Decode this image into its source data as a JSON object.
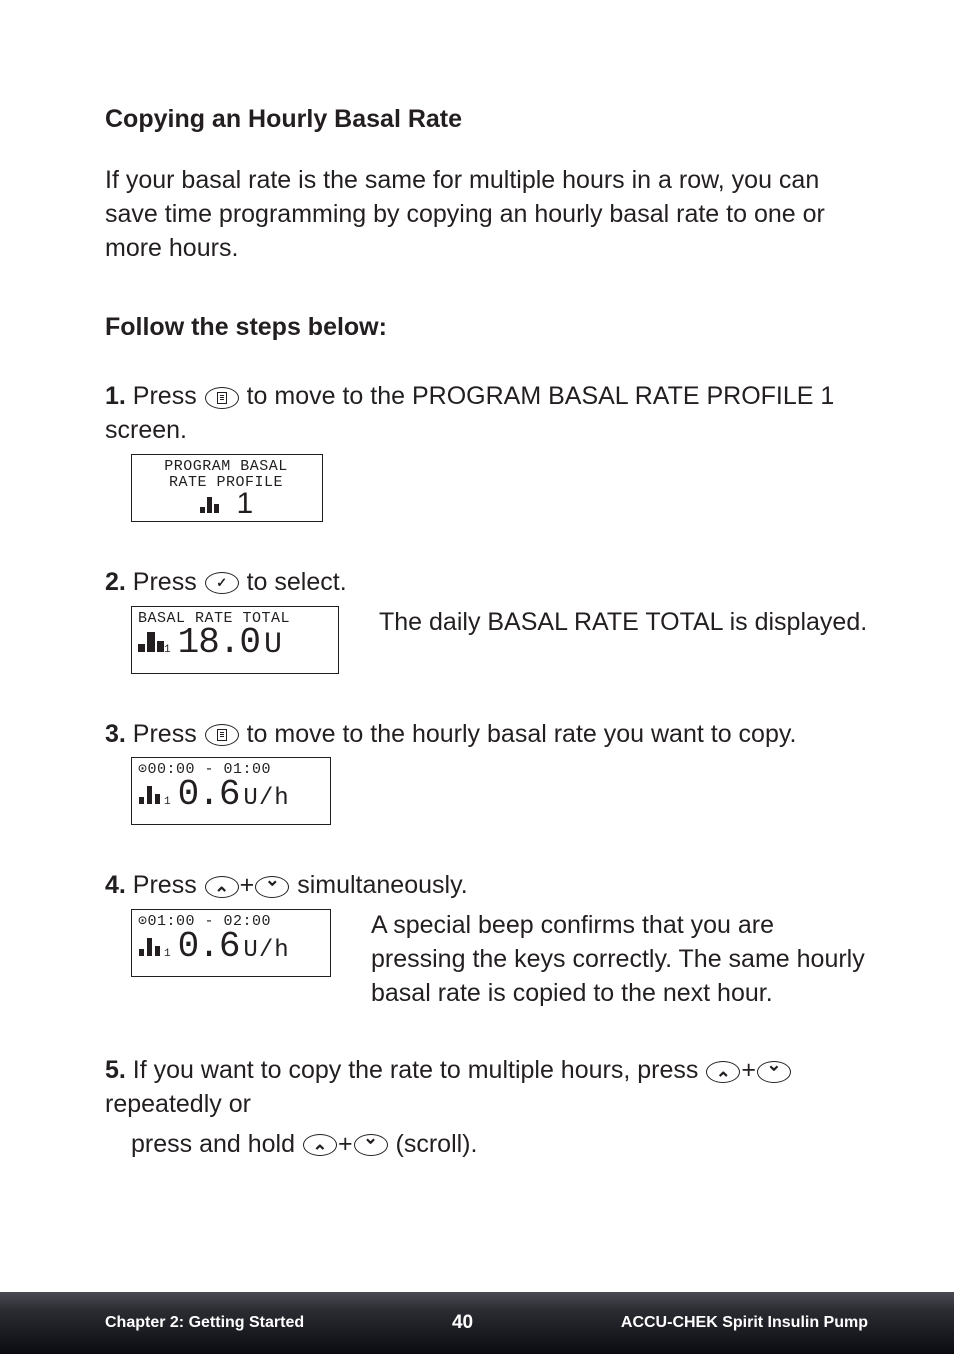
{
  "heading": "Copying an Hourly Basal Rate",
  "intro": "If your basal rate is the same for multiple hours in a row, you can save time programming by copying an hourly basal rate to one or more hours.",
  "subheading": "Follow the steps below:",
  "step1_pre": "1.",
  "step1_a": " Press ",
  "step1_b": " to move to the PROGRAM BASAL RATE PROFILE 1 screen.",
  "lcd1_line1": "PROGRAM BASAL",
  "lcd1_line2": "RATE PROFILE",
  "lcd1_num": "1",
  "step2_pre": "2.",
  "step2_a": " Press ",
  "step2_b": " to select.",
  "lcd2_top": "BASAL RATE TOTAL",
  "lcd2_val": "18.0",
  "lcd2_unit": "U",
  "step2_side": "The daily BASAL RATE TOTAL is displayed.",
  "step3_pre": "3.",
  "step3_a": " Press ",
  "step3_b": " to move to the hourly basal rate you want to copy.",
  "lcd3_top": "⊙00:00 - 01:00",
  "lcd3_val": "0.6",
  "lcd3_unit": "U/h",
  "step4_pre": "4.",
  "step4_a": " Press ",
  "step4_plus": "+",
  "step4_b": " simultaneously.",
  "lcd4_top": "⊙01:00 - 02:00",
  "lcd4_val": "0.6",
  "lcd4_unit": "U/h",
  "step4_side": "A special beep confirms that you are pressing the keys correctly. The same hourly basal rate is copied to the next hour.",
  "step5_pre": "5.",
  "step5_a": " If you want to copy the rate to multiple hours, press ",
  "step5_b": " repeatedly or",
  "step5_c": "press and hold ",
  "step5_d": " (scroll).",
  "footer_left": "Chapter 2: Getting Started",
  "footer_center": "40",
  "footer_right": "ACCU-CHEK Spirit Insulin Pump",
  "lcd_widths": {
    "w1": "192px",
    "w2": "208px",
    "w3": "200px",
    "w4": "200px"
  }
}
